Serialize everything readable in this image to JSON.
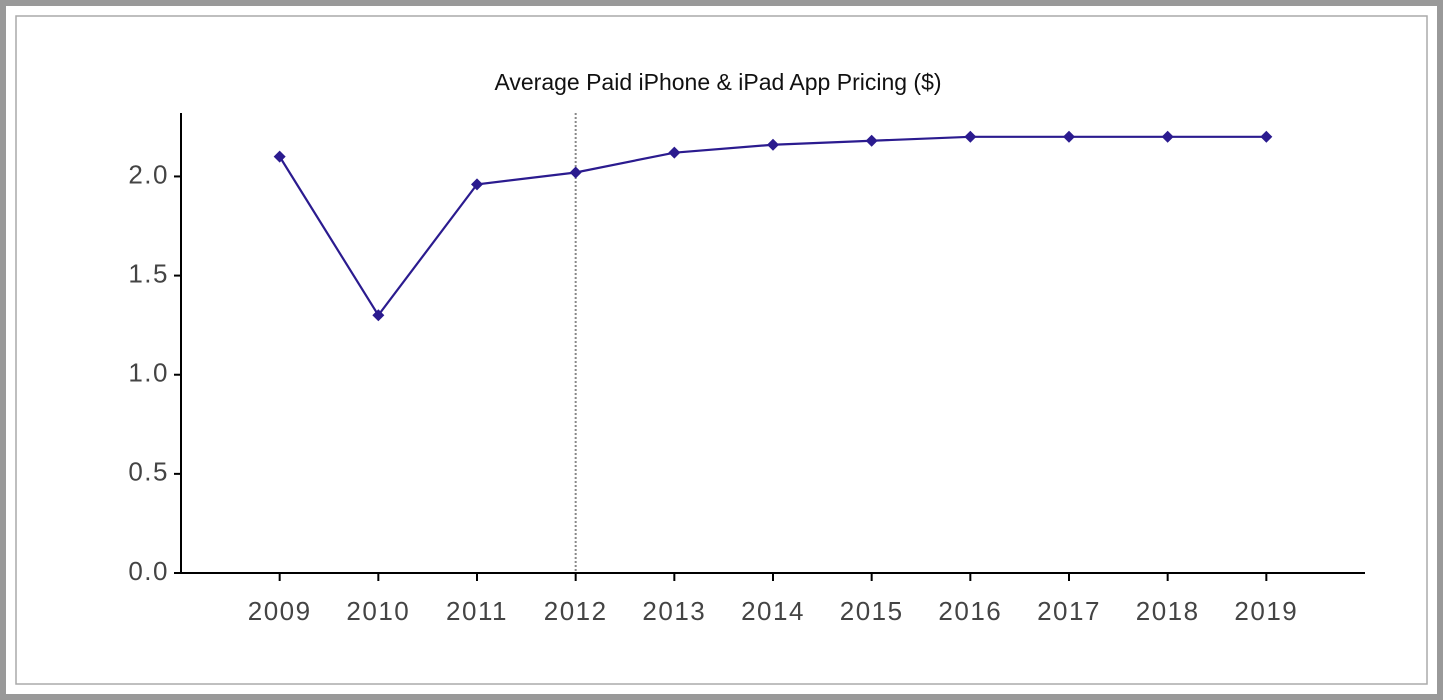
{
  "chart_data": {
    "type": "line",
    "title": "Average Paid iPhone & iPad App Pricing ($)",
    "x": [
      2009,
      2010,
      2011,
      2012,
      2013,
      2014,
      2015,
      2016,
      2017,
      2018,
      2019
    ],
    "series": [
      {
        "name": "Average Paid iPhone & iPad App Pricing ($)",
        "color": "#2b1b8f",
        "values": [
          2.1,
          1.3,
          1.96,
          2.02,
          2.12,
          2.16,
          2.18,
          2.2,
          2.2,
          2.2,
          2.2
        ]
      }
    ],
    "xlim": [
      2008,
      2020
    ],
    "xticks": [
      2009,
      2010,
      2011,
      2012,
      2013,
      2014,
      2015,
      2016,
      2017,
      2018,
      2019
    ],
    "ylim": [
      0,
      2.32
    ],
    "yticks": [
      {
        "value": 0,
        "label": "0.0"
      },
      0.5,
      {
        "value": 1,
        "label": "1.0"
      },
      1.5,
      {
        "value": 2,
        "label": "2.0"
      }
    ],
    "vline": 2012,
    "grid": false
  }
}
